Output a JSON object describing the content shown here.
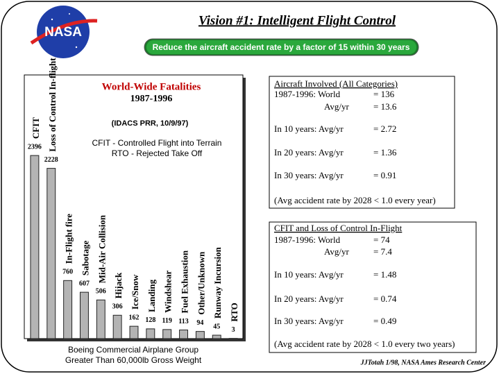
{
  "slide": {
    "logo": "NASA",
    "title": "Vision #1: Intelligent Flight Control",
    "banner": "Reduce the aircraft accident rate by a factor of 15 within 30 years",
    "footer": "JJTotah 1/98, NASA Ames Research Center",
    "source_lines": [
      "Boeing Commercial Airplane Group",
      "Greater Than 60,000lb Gross Weight"
    ],
    "boxes": [
      {
        "heading": "Aircraft Involved (All Categories)",
        "rows": [
          [
            "1987-1996:  World",
            "= 136"
          ],
          [
            "Avg/yr",
            "= 13.6"
          ],
          [
            "In 10 years: Avg/yr",
            "= 2.72"
          ],
          [
            "In 20 years: Avg/yr",
            "= 1.36"
          ],
          [
            "In 30 years: Avg/yr",
            "= 0.91"
          ]
        ],
        "note": "(Avg accident rate by 2028 < 1.0 every year)"
      },
      {
        "heading": "CFIT and Loss of Control In-Flight",
        "rows": [
          [
            "1987-1996:  World",
            "= 74"
          ],
          [
            "Avg/yr",
            "= 7.4"
          ],
          [
            "In 10 years: Avg/yr",
            "= 1.48"
          ],
          [
            "In 20 years: Avg/yr",
            "= 0.74"
          ],
          [
            "In 30 years: Avg/yr",
            "= 0.49"
          ]
        ],
        "note": "(Avg accident rate by 2028 < 1.0 every two years)"
      }
    ]
  },
  "chart_data": {
    "type": "bar",
    "title": "World-Wide Fatalities",
    "subtitle": "1987-1996",
    "annotations": [
      "(IDACS PRR, 10/9/97)",
      "CFIT - Controlled Flight into Terrain",
      "RTO - Rejected Take Off"
    ],
    "categories": [
      "CFIT",
      "Loss of Control In-flight",
      "In-Flight fire",
      "Sabotage",
      "Mid-Air Collision",
      "Hijack",
      "Ice/Snow",
      "Landing",
      "Windshear",
      "Fuel Exhaustion",
      "Other/Unknown",
      "Runway Incursion",
      "RTO"
    ],
    "values": [
      2396,
      2228,
      760,
      607,
      506,
      306,
      162,
      128,
      119,
      113,
      94,
      45,
      3
    ],
    "color": "#b4b4b4",
    "ylim": [
      0,
      3450
    ]
  }
}
